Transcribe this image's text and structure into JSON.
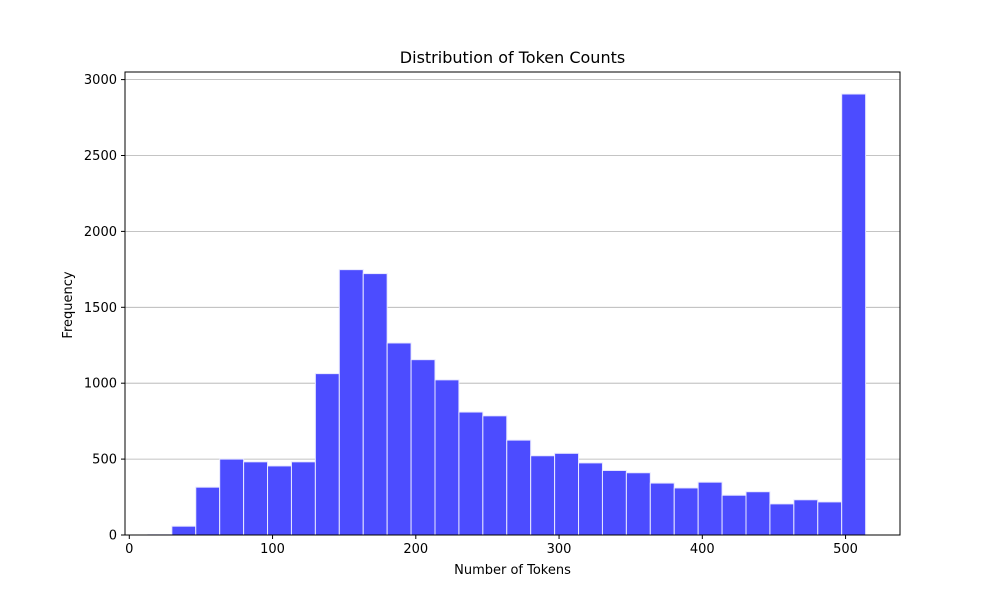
{
  "chart_data": {
    "type": "bar",
    "title": "Distribution of Token Counts",
    "xlabel": "Number of Tokens",
    "ylabel": "Frequency",
    "xlim": [
      -3,
      538
    ],
    "ylim": [
      0,
      3050
    ],
    "xticks": [
      0,
      100,
      200,
      300,
      400,
      500
    ],
    "yticks": [
      0,
      500,
      1000,
      1500,
      2000,
      2500,
      3000
    ],
    "grid": "y-axis gridlines",
    "bar_color": "#4c4cff",
    "edge_color": "#e8e8ff",
    "grid_color": "#b0b0b0",
    "bins": [
      {
        "x0": 13.0,
        "x1": 29.7,
        "value": 3
      },
      {
        "x0": 29.7,
        "x1": 46.4,
        "value": 58
      },
      {
        "x0": 46.4,
        "x1": 63.1,
        "value": 315
      },
      {
        "x0": 63.1,
        "x1": 79.8,
        "value": 500
      },
      {
        "x0": 79.8,
        "x1": 96.5,
        "value": 482
      },
      {
        "x0": 96.5,
        "x1": 113.2,
        "value": 455
      },
      {
        "x0": 113.2,
        "x1": 129.9,
        "value": 482
      },
      {
        "x0": 129.9,
        "x1": 146.6,
        "value": 1063
      },
      {
        "x0": 146.6,
        "x1": 163.3,
        "value": 1748
      },
      {
        "x0": 163.3,
        "x1": 180.0,
        "value": 1722
      },
      {
        "x0": 180.0,
        "x1": 196.7,
        "value": 1265
      },
      {
        "x0": 196.7,
        "x1": 213.4,
        "value": 1155
      },
      {
        "x0": 213.4,
        "x1": 230.1,
        "value": 1022
      },
      {
        "x0": 230.1,
        "x1": 246.8,
        "value": 810
      },
      {
        "x0": 246.8,
        "x1": 263.5,
        "value": 785
      },
      {
        "x0": 263.5,
        "x1": 280.2,
        "value": 625
      },
      {
        "x0": 280.2,
        "x1": 296.9,
        "value": 522
      },
      {
        "x0": 296.9,
        "x1": 313.6,
        "value": 538
      },
      {
        "x0": 313.6,
        "x1": 330.3,
        "value": 475
      },
      {
        "x0": 330.3,
        "x1": 347.0,
        "value": 425
      },
      {
        "x0": 347.0,
        "x1": 363.7,
        "value": 410
      },
      {
        "x0": 363.7,
        "x1": 380.4,
        "value": 342
      },
      {
        "x0": 380.4,
        "x1": 397.1,
        "value": 310
      },
      {
        "x0": 397.1,
        "x1": 413.8,
        "value": 348
      },
      {
        "x0": 413.8,
        "x1": 430.5,
        "value": 262
      },
      {
        "x0": 430.5,
        "x1": 447.2,
        "value": 285
      },
      {
        "x0": 447.2,
        "x1": 463.9,
        "value": 205
      },
      {
        "x0": 463.9,
        "x1": 480.6,
        "value": 232
      },
      {
        "x0": 480.6,
        "x1": 497.3,
        "value": 218
      },
      {
        "x0": 497.3,
        "x1": 514.0,
        "value": 2905
      }
    ]
  }
}
